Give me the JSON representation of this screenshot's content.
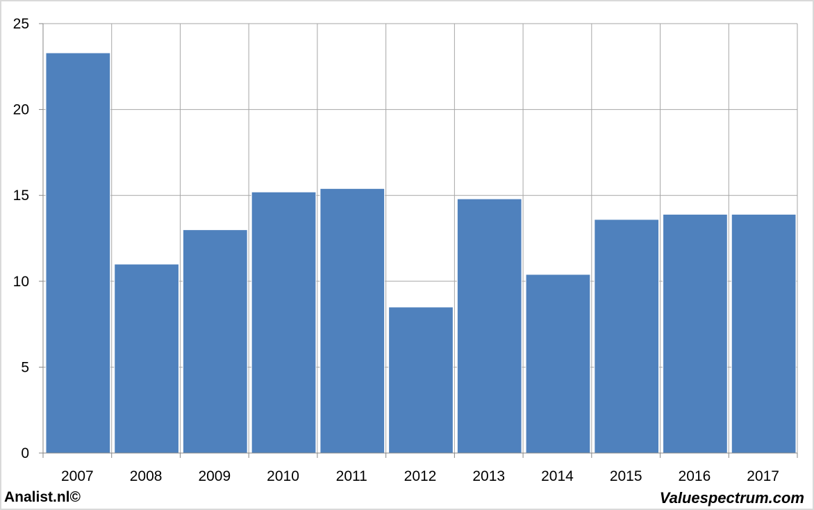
{
  "chart_data": {
    "type": "bar",
    "categories": [
      "2007",
      "2008",
      "2009",
      "2010",
      "2011",
      "2012",
      "2013",
      "2014",
      "2015",
      "2016",
      "2017"
    ],
    "values": [
      23.3,
      11.0,
      13.0,
      15.2,
      15.4,
      8.5,
      14.8,
      10.4,
      13.6,
      13.9,
      13.9
    ],
    "title": "",
    "xlabel": "",
    "ylabel": "",
    "ylim": [
      0,
      25
    ],
    "yticks": [
      "0",
      "5",
      "10",
      "15",
      "20",
      "25"
    ],
    "grid": true,
    "bar_color": "#4f81bd"
  },
  "footer": {
    "left_text": "Analist.nl©",
    "right_text": "Valuespectrum.com"
  }
}
